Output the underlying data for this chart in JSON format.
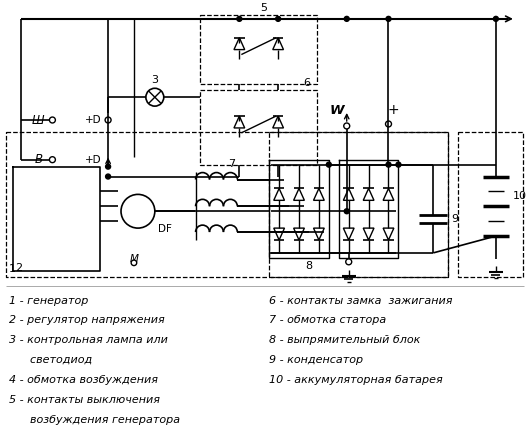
{
  "bg_color": "#ffffff",
  "fig_width": 5.31,
  "fig_height": 4.42,
  "legend_left": [
    "1 - генератор",
    "2 - регулятор напряжения",
    "3 - контрольная лампа или",
    "      светодиод",
    "4 - обмотка возбуждения",
    "5 - контакты выключения",
    "      возбуждения генератора"
  ],
  "legend_right": [
    "6 - контакты замка  зажигания",
    "7 - обмотка статора",
    "8 - выпрямительный блок",
    "9 - конденсатор",
    "10 - аккумуляторная батарея"
  ]
}
